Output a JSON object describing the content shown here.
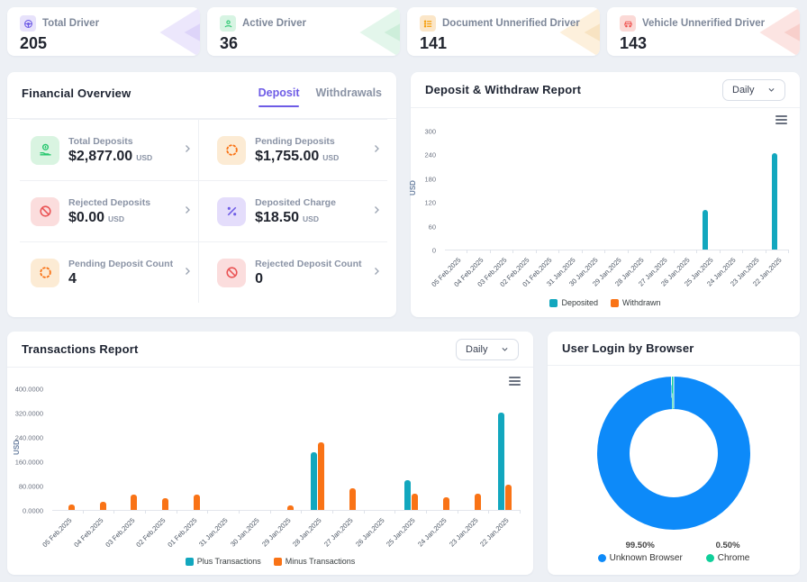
{
  "stat_cards": [
    {
      "label": "Total Driver",
      "value": "205",
      "icon": "steering-wheel-icon",
      "accent": "#6e5ce6",
      "icon_bg": "#e7e2fb",
      "arrow_outer": "#ece7fc",
      "arrow_inner": "#ddd4f9"
    },
    {
      "label": "Active Driver",
      "value": "36",
      "icon": "driver-check-icon",
      "accent": "#28c76f",
      "icon_bg": "#d7f4e3",
      "arrow_outer": "#e3f6eb",
      "arrow_inner": "#cdeeda"
    },
    {
      "label": "Document Unnerified Driver",
      "value": "141",
      "icon": "document-list-icon",
      "accent": "#f59e0b",
      "icon_bg": "#fbe6c8",
      "arrow_outer": "#fdf0dc",
      "arrow_inner": "#f8e3c2"
    },
    {
      "label": "Vehicle Unnerified Driver",
      "value": "143",
      "icon": "car-icon",
      "accent": "#ef5350",
      "icon_bg": "#fbd9d6",
      "arrow_outer": "#fce4e2",
      "arrow_inner": "#f8cfcb"
    }
  ],
  "financial": {
    "title": "Financial Overview",
    "tabs": {
      "deposit": "Deposit",
      "withdrawals": "Withdrawals"
    },
    "items": [
      {
        "label": "Total Deposits",
        "value": "$2,877.00",
        "unit": "USD",
        "icon": "hand-coin-icon",
        "fg": "#28c76f",
        "bg": "#d9f4e1"
      },
      {
        "label": "Pending Deposits",
        "value": "$1,755.00",
        "unit": "USD",
        "icon": "spinner-icon",
        "fg": "#f97316",
        "bg": "#fcebd4"
      },
      {
        "label": "Rejected Deposits",
        "value": "$0.00",
        "unit": "USD",
        "icon": "ban-icon",
        "fg": "#ea5455",
        "bg": "#fbdddd"
      },
      {
        "label": "Deposited Charge",
        "value": "$18.50",
        "unit": "USD",
        "icon": "percent-icon",
        "fg": "#6e5ce6",
        "bg": "#e4ddfb"
      },
      {
        "label": "Pending Deposit Count",
        "value": "4",
        "unit": "",
        "icon": "spinner-icon",
        "fg": "#f97316",
        "bg": "#fcebd4"
      },
      {
        "label": "Rejected Deposit Count",
        "value": "0",
        "unit": "",
        "icon": "ban-icon",
        "fg": "#ea5455",
        "bg": "#fbdddd"
      }
    ]
  },
  "deposit_report": {
    "title": "Deposit & Withdraw Report",
    "period": "Daily"
  },
  "transactions_report": {
    "title": "Transactions Report",
    "period": "Daily"
  },
  "browser_report": {
    "title": "User Login by Browser"
  },
  "chart_data": [
    {
      "id": "deposit_withdraw",
      "type": "bar",
      "title": "Deposit & Withdraw Report",
      "ylabel": "USD",
      "ylim": [
        0,
        300
      ],
      "ytick_values": [
        0,
        60,
        120,
        180,
        240,
        300
      ],
      "ytick_labels": [
        "0",
        "60",
        "120",
        "180",
        "240",
        "300"
      ],
      "grid": false,
      "legend_position": "bottom",
      "categories": [
        "05 Feb,2025",
        "04 Feb,2025",
        "03 Feb,2025",
        "02 Feb,2025",
        "01 Feb,2025",
        "31 Jan,2025",
        "30 Jan,2025",
        "29 Jan,2025",
        "28 Jan,2025",
        "27 Jan,2025",
        "26 Jan,2025",
        "25 Jan,2025",
        "24 Jan,2025",
        "23 Jan,2025",
        "22 Jan,2025"
      ],
      "series": [
        {
          "name": "Deposited",
          "color": "#12a7be",
          "values": [
            0,
            0,
            0,
            0,
            0,
            0,
            0,
            0,
            0,
            0,
            0,
            100,
            0,
            0,
            245
          ]
        },
        {
          "name": "Withdrawn",
          "color": "#f97316",
          "values": [
            0,
            0,
            0,
            0,
            0,
            0,
            0,
            0,
            0,
            0,
            0,
            0,
            0,
            0,
            0
          ]
        }
      ]
    },
    {
      "id": "transactions",
      "type": "bar",
      "title": "Transactions Report",
      "ylabel": "USD",
      "ylim": [
        0,
        400
      ],
      "ytick_values": [
        0,
        80,
        160,
        240,
        320,
        400
      ],
      "ytick_labels": [
        "0.0000",
        "80.0000",
        "160.0000",
        "240.0000",
        "320.0000",
        "400.0000"
      ],
      "grid": false,
      "legend_position": "bottom",
      "categories": [
        "05 Feb,2025",
        "04 Feb,2025",
        "03 Feb,2025",
        "02 Feb,2025",
        "01 Feb,2025",
        "31 Jan,2025",
        "30 Jan,2025",
        "29 Jan,2025",
        "28 Jan,2025",
        "27 Jan,2025",
        "26 Jan,2025",
        "25 Jan,2025",
        "24 Jan,2025",
        "23 Jan,2025",
        "22 Jan,2025"
      ],
      "series": [
        {
          "name": "Plus Transactions",
          "color": "#12a7be",
          "values": [
            0,
            0,
            0,
            0,
            0,
            0,
            0,
            0,
            190,
            0,
            0,
            98,
            0,
            0,
            323
          ]
        },
        {
          "name": "Minus Transactions",
          "color": "#f97316",
          "values": [
            19,
            26,
            50,
            40,
            50,
            0,
            0,
            15,
            225,
            73,
            0,
            55,
            43,
            53,
            85
          ]
        }
      ]
    },
    {
      "id": "browser_login",
      "type": "pie",
      "title": "User Login by Browser",
      "legend_position": "bottom",
      "slices": [
        {
          "label": "Unknown Browser",
          "pct_label": "99.50%",
          "value": 99.5,
          "color": "#0d8af9"
        },
        {
          "label": "Chrome",
          "pct_label": "0.50%",
          "value": 0.5,
          "color": "#0fcf9a"
        }
      ]
    }
  ]
}
